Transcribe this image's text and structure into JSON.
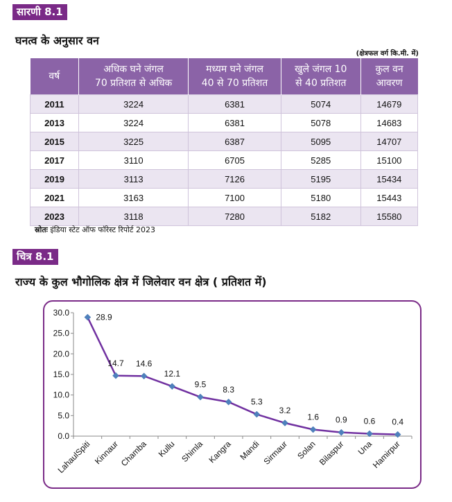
{
  "table_tag": "सारणी 8.1",
  "table_heading": "घनत्व के अनुसार वन",
  "unit_note": "(क्षेत्रफल वर्ग कि.मी. में)",
  "table": {
    "headers": [
      {
        "line1": "वर्ष",
        "line2": ""
      },
      {
        "line1": "अधिक घने जंगल",
        "line2": "70 प्रतिशत से अधिक"
      },
      {
        "line1": "मध्यम घने जंगल",
        "line2": "40 से 70 प्रतिशत"
      },
      {
        "line1": "खुले जंगल 10",
        "line2": "से 40 प्रतिशत"
      },
      {
        "line1": "कुल वन",
        "line2": "आवरण"
      }
    ],
    "rows": [
      [
        "2011",
        "3224",
        "6381",
        "5074",
        "14679"
      ],
      [
        "2013",
        "3224",
        "6381",
        "5078",
        "14683"
      ],
      [
        "2015",
        "3225",
        "6387",
        "5095",
        "14707"
      ],
      [
        "2017",
        "3110",
        "6705",
        "5285",
        "15100"
      ],
      [
        "2019",
        "3113",
        "7126",
        "5195",
        "15434"
      ],
      [
        "2021",
        "3163",
        "7100",
        "5180",
        "15443"
      ],
      [
        "2023",
        "3118",
        "7280",
        "5182",
        "15580"
      ]
    ]
  },
  "source_label": "स्रोतः",
  "source_text": " इंडिया स्टेट ऑफ फॉरेस्ट रिपोर्ट 2023",
  "chart_tag": "चित्र 8.1",
  "chart_heading": "राज्य के कुल भौगोलिक क्षेत्र में जिलेवार वन क्षेत्र ( प्रतिशत में)",
  "colors": {
    "accent": "#7a2a87",
    "header_bg": "#8b63a7",
    "line": "#7030a0",
    "marker": "#4f81bd"
  },
  "chart_data": {
    "type": "line",
    "categories": [
      "LahaulSpiti",
      "Kinnaur",
      "Chamba",
      "Kullu",
      "Shimla",
      "Kangra",
      "Mandi",
      "Sirmaur",
      "Solan",
      "Bilaspur",
      "Una",
      "Hamirpur"
    ],
    "values": [
      28.9,
      14.7,
      14.6,
      12.1,
      9.5,
      8.3,
      5.3,
      3.2,
      1.6,
      0.9,
      0.6,
      0.4
    ],
    "value_labels": [
      "28.9",
      "14.7",
      "14.6",
      "12.1",
      "9.5",
      "8.3",
      "5.3",
      "3.2",
      "1.6",
      "0.9",
      "0.6",
      "0.4"
    ],
    "yticks": [
      "0.0",
      "5.0",
      "10.0",
      "15.0",
      "20.0",
      "25.0",
      "30.0"
    ],
    "ylim": [
      0,
      30
    ],
    "grid": false,
    "legend": "none",
    "marker": "diamond"
  }
}
